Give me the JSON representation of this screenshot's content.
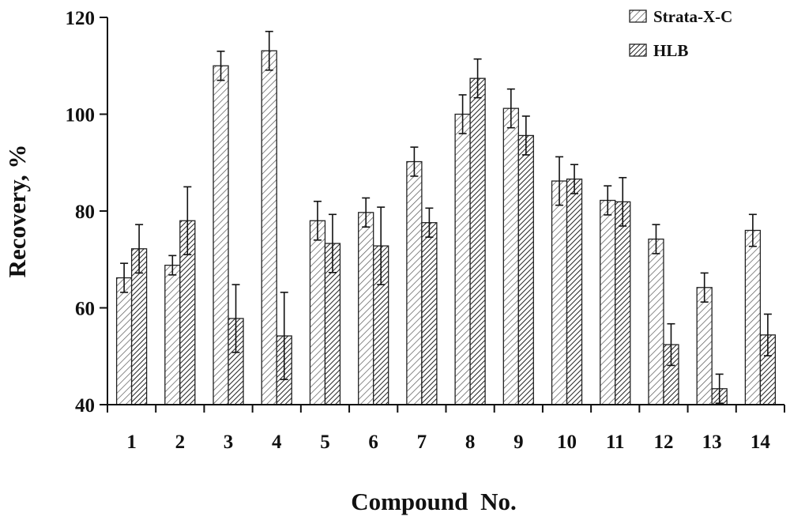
{
  "chart_data": {
    "type": "bar",
    "xlabel": "Compound No.",
    "ylabel": "Recovery, %",
    "ylim": [
      40,
      120
    ],
    "yticks": [
      40,
      60,
      80,
      100,
      120
    ],
    "legend_position": "top-right",
    "categories": [
      "1",
      "2",
      "3",
      "4",
      "5",
      "6",
      "7",
      "8",
      "9",
      "10",
      "11",
      "12",
      "13",
      "14"
    ],
    "series": [
      {
        "name": "Strata-X-C",
        "pattern": "light-diagonal-hatch",
        "values": [
          66.2,
          68.8,
          110.0,
          113.1,
          78.0,
          79.7,
          90.2,
          100.0,
          101.2,
          86.2,
          82.2,
          74.2,
          64.2,
          76.0
        ],
        "errors": [
          3.0,
          2.0,
          3.0,
          4.0,
          4.0,
          3.0,
          3.0,
          4.0,
          4.0,
          5.0,
          3.0,
          3.0,
          3.0,
          3.3
        ]
      },
      {
        "name": "HLB",
        "pattern": "dense-diagonal-hatch",
        "values": [
          72.2,
          78.0,
          57.8,
          54.2,
          73.3,
          72.8,
          77.6,
          107.4,
          95.6,
          86.6,
          81.9,
          52.4,
          43.3,
          54.4
        ],
        "errors": [
          5.0,
          7.0,
          7.0,
          9.0,
          6.0,
          8.0,
          3.0,
          4.0,
          4.0,
          3.0,
          5.0,
          4.3,
          3.0,
          4.3
        ]
      }
    ]
  }
}
